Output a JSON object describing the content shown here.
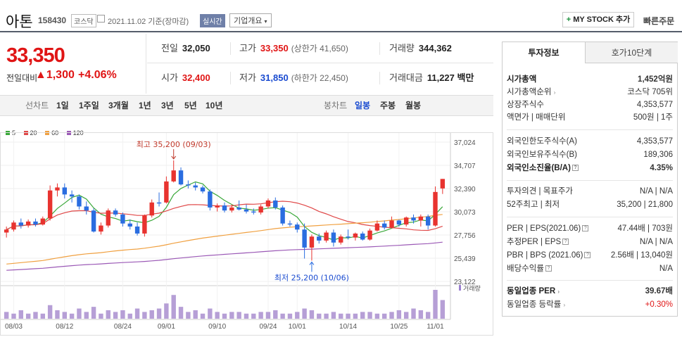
{
  "header": {
    "title": "아톤",
    "code": "158430",
    "market": "코스닥",
    "date": "2021.11.02  기준(장마감)",
    "realtime": "실시간",
    "overview": "기업개요",
    "mystock": "MY STOCK 추가",
    "quick": "빠른주문"
  },
  "price": {
    "current": "33,350",
    "change_label": "전일대비",
    "change": "▲1,300",
    "change_pct": "+4.06%"
  },
  "quote": {
    "prev_label": "전일",
    "prev": "32,050",
    "high_label": "고가",
    "high": "33,350",
    "upper_limit": "(상한가 41,650)",
    "volume_label": "거래량",
    "volume": "344,362",
    "open_label": "시가",
    "open": "32,400",
    "low_label": "저가",
    "low": "31,850",
    "lower_limit": "(하한가 22,450)",
    "amount_label": "거래대금",
    "amount": "11,227 백만"
  },
  "toolbar": {
    "line_label": "선차트",
    "periods": [
      "1일",
      "1주일",
      "3개월",
      "1년",
      "3년",
      "5년",
      "10년"
    ],
    "candle_label": "봉차트",
    "candles": [
      "일봉",
      "주봉",
      "월봉"
    ],
    "selected_candle": "일봉"
  },
  "chart_data": {
    "type": "candlestick",
    "legend": [
      {
        "name": "5",
        "color": "#3aa83a"
      },
      {
        "name": "20",
        "color": "#e04848"
      },
      {
        "name": "60",
        "color": "#f0a040"
      },
      {
        "name": "120",
        "color": "#9b59b6"
      }
    ],
    "y_ticks": [
      "37,024",
      "34,707",
      "32,390",
      "30,073",
      "27,756",
      "25,439",
      "23,122"
    ],
    "ylim": [
      23122,
      37024
    ],
    "x_ticks": [
      {
        "label": "08/03",
        "i": 1
      },
      {
        "label": "08/12",
        "i": 8
      },
      {
        "label": "08/24",
        "i": 16
      },
      {
        "label": "09/01",
        "i": 22
      },
      {
        "label": "09/10",
        "i": 29
      },
      {
        "label": "09/24",
        "i": 36
      },
      {
        "label": "10/01",
        "i": 40
      },
      {
        "label": "10/14",
        "i": 47
      },
      {
        "label": "10/25",
        "i": 54
      },
      {
        "label": "11/01",
        "i": 59
      }
    ],
    "max_annotation": {
      "text": "최고 35,200 (09/03)",
      "i": 23,
      "value": 35200
    },
    "min_annotation": {
      "text": "최저 25,200 (10/06)",
      "i": 42,
      "value": 25200
    },
    "volume_label": "거래량",
    "candles": [
      [
        28000,
        28600,
        27500,
        28300
      ],
      [
        28300,
        29200,
        28100,
        29000
      ],
      [
        29000,
        29400,
        28400,
        28700
      ],
      [
        28700,
        29300,
        28500,
        29100
      ],
      [
        29100,
        29400,
        28600,
        28800
      ],
      [
        28800,
        29600,
        28700,
        29400
      ],
      [
        29400,
        32700,
        29200,
        32200
      ],
      [
        32200,
        32900,
        31600,
        32500
      ],
      [
        32500,
        32900,
        31400,
        31800
      ],
      [
        31800,
        32200,
        31000,
        31600
      ],
      [
        31600,
        31800,
        30300,
        30600
      ],
      [
        30600,
        31100,
        29800,
        30200
      ],
      [
        30200,
        30400,
        28000,
        28100
      ],
      [
        28100,
        29000,
        27800,
        28700
      ],
      [
        28700,
        30400,
        28500,
        30200
      ],
      [
        30200,
        30400,
        29600,
        29800
      ],
      [
        29800,
        30000,
        28600,
        28900
      ],
      [
        28900,
        29300,
        28300,
        28600
      ],
      [
        28600,
        29000,
        27700,
        27900
      ],
      [
        27900,
        29800,
        27600,
        29700
      ],
      [
        29700,
        31300,
        29500,
        31000
      ],
      [
        31000,
        32000,
        30600,
        30900
      ],
      [
        31000,
        33600,
        30900,
        33100
      ],
      [
        33100,
        35200,
        33000,
        34200
      ],
      [
        34200,
        34500,
        32700,
        32800
      ],
      [
        32800,
        33200,
        32400,
        32700
      ],
      [
        32700,
        33000,
        32200,
        32500
      ],
      [
        32500,
        32700,
        31900,
        32100
      ],
      [
        32100,
        32300,
        30200,
        30500
      ],
      [
        30500,
        30900,
        30100,
        30700
      ],
      [
        30700,
        31000,
        30000,
        30200
      ],
      [
        30200,
        30800,
        30000,
        30500
      ],
      [
        30500,
        31200,
        30200,
        30300
      ],
      [
        30300,
        30800,
        29900,
        30100
      ],
      [
        30100,
        30400,
        29800,
        30000
      ],
      [
        30000,
        30800,
        29800,
        30600
      ],
      [
        30600,
        31400,
        30400,
        31200
      ],
      [
        31200,
        31500,
        30300,
        30500
      ],
      [
        30500,
        30700,
        28700,
        28900
      ],
      [
        28900,
        29200,
        28600,
        28800
      ],
      [
        28800,
        29000,
        28000,
        28300
      ],
      [
        28300,
        28900,
        25400,
        26500
      ],
      [
        26500,
        27800,
        25200,
        27600
      ],
      [
        27600,
        27900,
        26900,
        27200
      ],
      [
        27200,
        28200,
        27000,
        28000
      ],
      [
        28000,
        28300,
        26600,
        27000
      ],
      [
        27000,
        27800,
        26800,
        27600
      ],
      [
        27600,
        28300,
        27300,
        27500
      ],
      [
        27500,
        28000,
        27200,
        27900
      ],
      [
        27900,
        28100,
        27200,
        27300
      ],
      [
        27300,
        28400,
        27200,
        28200
      ],
      [
        28200,
        29200,
        28100,
        28900
      ],
      [
        28900,
        29200,
        28300,
        28500
      ],
      [
        28500,
        29600,
        28400,
        29200
      ],
      [
        29200,
        29300,
        28600,
        28800
      ],
      [
        28800,
        29600,
        28600,
        29500
      ],
      [
        29500,
        29800,
        28900,
        29200
      ],
      [
        29200,
        29800,
        28600,
        29600
      ],
      [
        29600,
        29800,
        28300,
        28700
      ],
      [
        28700,
        32600,
        28600,
        32050
      ],
      [
        32400,
        33350,
        31850,
        33350
      ]
    ],
    "volumes": [
      4,
      3,
      5,
      3,
      4,
      3,
      8,
      5,
      4,
      3,
      6,
      4,
      7,
      3,
      5,
      4,
      5,
      3,
      6,
      4,
      5,
      6,
      9,
      14,
      7,
      4,
      5,
      3,
      6,
      4,
      3,
      4,
      4,
      3,
      3,
      4,
      4,
      5,
      3,
      3,
      4,
      6,
      5,
      3,
      3,
      4,
      3,
      3,
      3,
      4,
      4,
      3,
      3,
      4,
      5,
      4,
      6,
      5,
      4,
      17,
      11
    ]
  },
  "sidebar": {
    "tab_active": "투자정보",
    "tab_other": "호가10단계",
    "market_cap_label": "시가총액",
    "market_cap": "1,452억원",
    "rank_label": "시가총액순위",
    "rank": "코스닥 705위",
    "shares_label": "상장주식수",
    "shares": "4,353,577",
    "par_label": "액면가 | 매매단위",
    "par": "500원 | 1주",
    "foreign_limit_label": "외국인한도주식수(A)",
    "foreign_limit": "4,353,577",
    "foreign_hold_label": "외국인보유주식수(B)",
    "foreign_hold": "189,306",
    "foreign_ratio_label": "외국인소진율(B/A)",
    "foreign_ratio": "4.35%",
    "opinion_label": "투자의견 | 목표주가",
    "opinion": "N/A | N/A",
    "week52_label": "52주최고 | 최저",
    "week52": "35,200 | 21,800",
    "per_label": "PER | EPS(2021.06)",
    "per": "47.44배 | 703원",
    "est_per_label": "추정PER | EPS",
    "est_per": "N/A | N/A",
    "pbr_label": "PBR | BPS (2021.06)",
    "pbr": "2.56배 | 13,040원",
    "dividend_label": "배당수익률",
    "dividend": "N/A",
    "sector_per_label": "동일업종 PER",
    "sector_per": "39.67배",
    "sector_rate_label": "동일업종 등락률",
    "sector_rate": "+0.30%"
  }
}
